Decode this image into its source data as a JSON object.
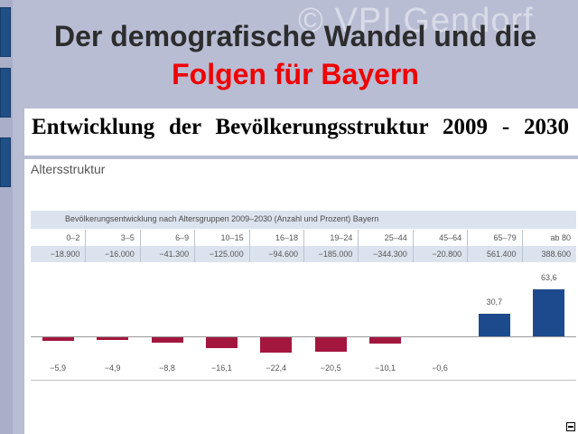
{
  "slide": {
    "watermark": "© VPI Gendorf",
    "title_line1": "Der demografische Wandel und die",
    "title_line2": "Folgen für Bayern",
    "subtitle": "Entwicklung der Bevölkerungsstruktur 2009 - 2030"
  },
  "chart_data": {
    "type": "bar",
    "title": "Altersstruktur",
    "table_header": "Bevölkerungsentwicklung nach Altersgruppen 2009–2030 (Anzahl und Prozent) Bayern",
    "categories": [
      "0–2",
      "3–5",
      "6–9",
      "10–15",
      "16–18",
      "19–24",
      "25–44",
      "45–64",
      "65–79",
      "ab 80"
    ],
    "absolute_labels": [
      "−18.900",
      "−16.000",
      "−41.300",
      "−125.000",
      "−94.600",
      "−185.000",
      "−344.300",
      "−20.800",
      "561.400",
      "388.600"
    ],
    "values": [
      -5.9,
      -4.9,
      -8.8,
      -16.1,
      -22.4,
      -20.5,
      -10.1,
      -0.6,
      30.7,
      63.6
    ],
    "value_labels": [
      "−5,9",
      "−4,9",
      "−8,8",
      "−16,1",
      "−22,4",
      "−20,5",
      "−10,1",
      "−0,6",
      "30,7",
      "63,6"
    ],
    "colors": {
      "negative": "#a3173f",
      "positive": "#1d4a8c"
    }
  }
}
